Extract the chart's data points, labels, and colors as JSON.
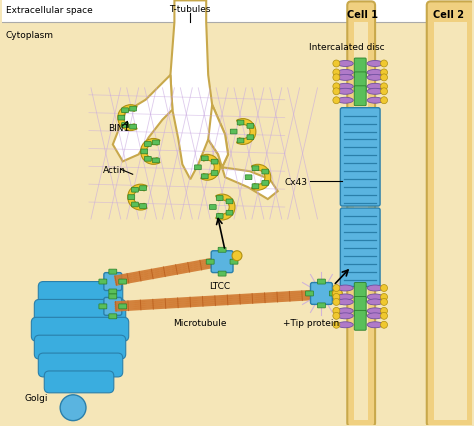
{
  "bg_color": "#f5e6b8",
  "cell_wall_color": "#c8a84b",
  "cell_wall_fill": "#f0d080",
  "blue_color": "#5ab4e0",
  "blue_dark": "#2a7faa",
  "green_color": "#5abf5a",
  "yellow_color": "#f0c830",
  "purple_color": "#b07ac8",
  "orange_color": "#d07830",
  "actin_color": "#c8a8e0",
  "labels": {
    "extracellular": "Extracellular space",
    "cytoplasm": "Cytoplasm",
    "t_tubules": "T-tubules",
    "bin1": "BIN1",
    "actin": "Actin",
    "ltcc": "LTCC",
    "microtubule": "Microtubule",
    "golgi": "Golgi",
    "cell1": "Cell 1",
    "cell2": "Cell 2",
    "intercalated_disc": "Intercalated disc",
    "cx43": "Cx43",
    "tip_protein": "+Tip protein"
  }
}
